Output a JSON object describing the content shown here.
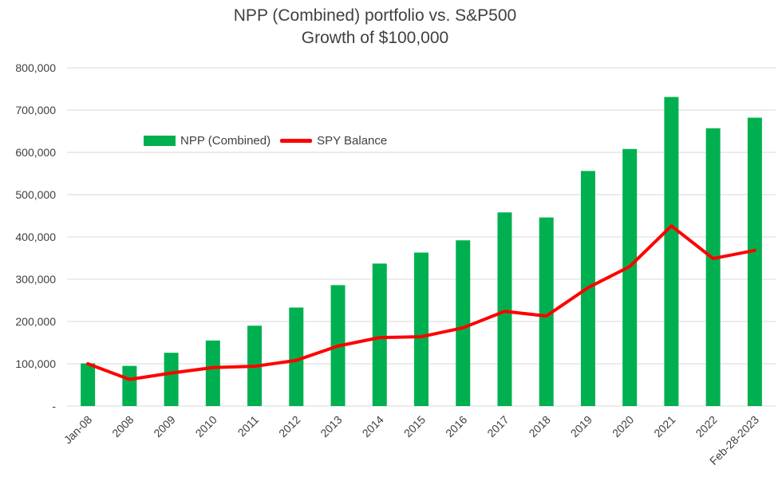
{
  "chart_data": {
    "type": "bar",
    "title": "NPP (Combined) portfolio  vs. S&P500",
    "subtitle": "Growth of $100,000",
    "categories": [
      "Jan-08",
      "2008",
      "2009",
      "2010",
      "2011",
      "2012",
      "2013",
      "2014",
      "2015",
      "2016",
      "2017",
      "2018",
      "2019",
      "2020",
      "2021",
      "2022",
      "Feb-28-2023"
    ],
    "series": [
      {
        "name": "NPP (Combined)",
        "kind": "bar",
        "color": "#00B050",
        "values": [
          101000,
          95000,
          126000,
          155000,
          190000,
          233000,
          286000,
          337000,
          363000,
          392000,
          458000,
          446000,
          556000,
          608000,
          731000,
          657000,
          682000
        ]
      },
      {
        "name": "SPY Balance",
        "kind": "line",
        "color": "#FF0000",
        "values": [
          100000,
          63000,
          78000,
          91000,
          94000,
          108000,
          142000,
          162000,
          164000,
          185000,
          224000,
          213000,
          280000,
          330000,
          426000,
          349000,
          368000
        ]
      }
    ],
    "ylim": [
      0,
      800000
    ],
    "yticks": [
      0,
      100000,
      200000,
      300000,
      400000,
      500000,
      600000,
      700000,
      800000
    ],
    "ytick_labels": [
      "-",
      "100,000",
      "200,000",
      "300,000",
      "400,000",
      "500,000",
      "600,000",
      "700,000",
      "800,000"
    ],
    "grid": true,
    "legend_position": "top-left inside plot"
  },
  "colors": {
    "bar": "#00B050",
    "line": "#FF0000",
    "grid": "#D9D9D9",
    "text": "#404040"
  }
}
